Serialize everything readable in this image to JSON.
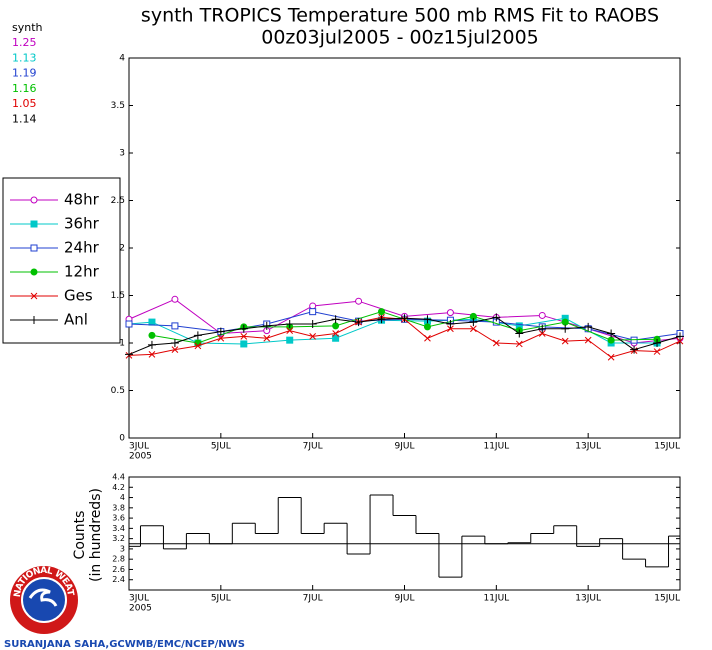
{
  "chart_data": [
    {
      "type": "line",
      "title": "synth TROPICS Temperature 500 mb RMS Fit to RAOBS",
      "subtitle": "00z03jul2005 - 00z15jul2005",
      "stats_title": "synth",
      "xlim": [
        0,
        12
      ],
      "xticks": [
        {
          "value": 0,
          "label": "3JUL"
        },
        {
          "value": 2,
          "label": "5JUL"
        },
        {
          "value": 4,
          "label": "7JUL"
        },
        {
          "value": 6,
          "label": "9JUL"
        },
        {
          "value": 8,
          "label": "11JUL"
        },
        {
          "value": 10,
          "label": "13JUL"
        },
        {
          "value": 12,
          "label": "15JUL"
        }
      ],
      "year_label": "2005",
      "ylim": [
        0,
        4
      ],
      "yticks": [
        0,
        0.5,
        1,
        1.5,
        2,
        2.5,
        3,
        3.5,
        4
      ],
      "series": [
        {
          "name": "48hr",
          "color": "#c000c0",
          "marker": "open-circle",
          "mean": 1.25,
          "x": [
            0,
            1,
            2,
            3,
            4,
            5,
            6,
            7,
            8,
            9,
            10,
            11,
            12
          ],
          "values": [
            1.25,
            1.46,
            1.1,
            1.13,
            1.39,
            1.44,
            1.28,
            1.32,
            1.27,
            1.29,
            1.15,
            1.0,
            1.05
          ]
        },
        {
          "name": "36hr",
          "color": "#00c8c8",
          "marker": "filled-square",
          "mean": 1.13,
          "x": [
            0,
            0.5,
            1.5,
            2.5,
            3.5,
            4.5,
            5.5,
            6.5,
            7.5,
            8.5,
            9.5,
            10.5,
            11.5
          ],
          "values": [
            1.2,
            1.22,
            1.0,
            0.99,
            1.03,
            1.05,
            1.24,
            1.23,
            1.25,
            1.18,
            1.26,
            1.0,
            1.0
          ]
        },
        {
          "name": "24hr",
          "color": "#2040d0",
          "marker": "open-square",
          "mean": 1.19,
          "x": [
            0,
            1,
            2,
            3,
            4,
            5,
            6,
            7,
            8,
            9,
            10,
            11,
            12
          ],
          "values": [
            1.2,
            1.18,
            1.12,
            1.2,
            1.33,
            1.23,
            1.25,
            1.24,
            1.22,
            1.17,
            1.15,
            1.03,
            1.1
          ]
        },
        {
          "name": "12hr",
          "color": "#00c000",
          "marker": "filled-circle",
          "mean": 1.16,
          "x": [
            0.5,
            1.5,
            2.5,
            3.5,
            4.5,
            5.5,
            6.5,
            7.5,
            8.5,
            9.5,
            10.5,
            11.5
          ],
          "values": [
            1.08,
            1.0,
            1.17,
            1.17,
            1.18,
            1.33,
            1.17,
            1.28,
            1.13,
            1.22,
            1.03,
            1.04
          ]
        },
        {
          "name": "Ges",
          "color": "#e00000",
          "marker": "x",
          "mean": 1.05,
          "x": [
            0,
            0.5,
            1,
            1.5,
            2,
            2.5,
            3,
            3.5,
            4,
            4.5,
            5,
            5.5,
            6,
            6.5,
            7,
            7.5,
            8,
            8.5,
            9,
            9.5,
            10,
            10.5,
            11,
            11.5,
            12
          ],
          "values": [
            0.87,
            0.88,
            0.93,
            0.97,
            1.05,
            1.07,
            1.05,
            1.13,
            1.07,
            1.1,
            1.22,
            1.27,
            1.25,
            1.05,
            1.15,
            1.15,
            1.0,
            0.99,
            1.1,
            1.02,
            1.03,
            0.85,
            0.92,
            0.91,
            1.02
          ]
        },
        {
          "name": "Anl",
          "color": "#000000",
          "marker": "plus",
          "mean": 1.14,
          "x": [
            0,
            0.5,
            1,
            1.5,
            2,
            2.5,
            3,
            3.5,
            4,
            4.5,
            5,
            5.5,
            6,
            6.5,
            7,
            7.5,
            8,
            8.5,
            9,
            9.5,
            10,
            10.5,
            11,
            11.5,
            12
          ],
          "values": [
            0.88,
            0.98,
            1.0,
            1.08,
            1.12,
            1.15,
            1.18,
            1.2,
            1.2,
            1.25,
            1.22,
            1.25,
            1.26,
            1.25,
            1.2,
            1.22,
            1.27,
            1.1,
            1.15,
            1.15,
            1.17,
            1.1,
            0.93,
            1.0,
            1.07
          ]
        }
      ]
    },
    {
      "type": "step",
      "y_label": "Counts",
      "y_label_2": "(in hundreds)",
      "xlim": [
        0,
        12
      ],
      "xticks": [
        {
          "value": 0,
          "label": "3JUL"
        },
        {
          "value": 2,
          "label": "5JUL"
        },
        {
          "value": 4,
          "label": "7JUL"
        },
        {
          "value": 6,
          "label": "9JUL"
        },
        {
          "value": 8,
          "label": "11JUL"
        },
        {
          "value": 10,
          "label": "13JUL"
        },
        {
          "value": 12,
          "label": "15JUL"
        }
      ],
      "year_label": "2005",
      "ylim": [
        2.2,
        4.4
      ],
      "yticks": [
        2.4,
        2.6,
        2.8,
        3,
        3.2,
        3.4,
        3.6,
        3.8,
        4,
        4.2,
        4.4
      ],
      "reference_line": 3.1,
      "color": "#000000",
      "x": [
        0,
        0.5,
        1,
        1.5,
        2,
        2.5,
        3,
        3.5,
        4,
        4.5,
        5,
        5.5,
        6,
        6.5,
        7,
        7.5,
        8,
        8.5,
        9,
        9.5,
        10,
        10.5,
        11,
        11.5,
        12
      ],
      "values": [
        3.05,
        3.45,
        3.0,
        3.3,
        3.1,
        3.5,
        3.3,
        4.0,
        3.3,
        3.5,
        2.9,
        4.05,
        3.65,
        3.3,
        2.45,
        3.25,
        3.1,
        3.12,
        3.3,
        3.45,
        3.05,
        3.2,
        2.8,
        2.65,
        3.25
      ]
    }
  ],
  "footer": {
    "credit": "SURANJANA SAHA,GCWMB/EMC/NCEP/NWS",
    "logo_text": "NATIONAL WEATHER SERVICE"
  }
}
